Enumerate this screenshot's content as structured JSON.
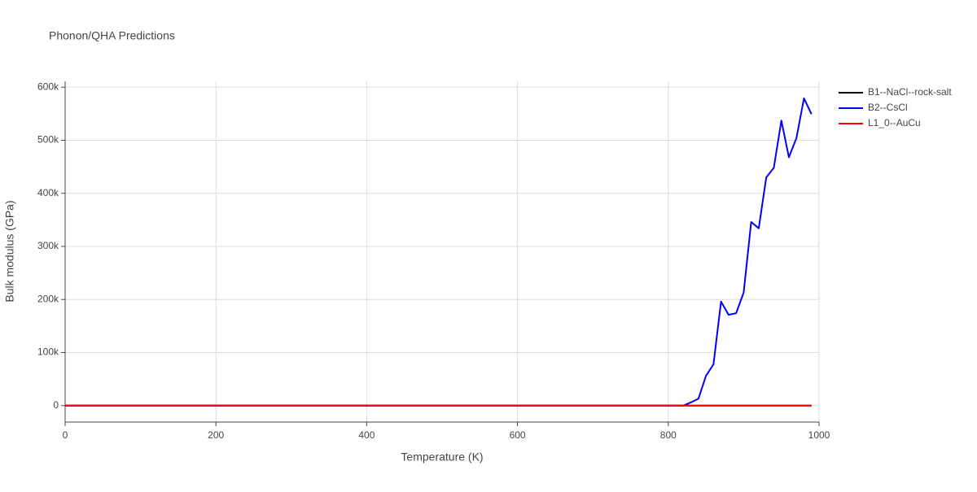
{
  "chart_data": {
    "type": "line",
    "title": "Phonon/QHA Predictions",
    "x_label": "Temperature (K)",
    "y_label": "Bulk modulus (GPa)",
    "x": [
      0,
      10,
      20,
      30,
      40,
      50,
      60,
      70,
      80,
      90,
      100,
      110,
      120,
      130,
      140,
      150,
      160,
      170,
      180,
      190,
      200,
      210,
      220,
      230,
      240,
      250,
      260,
      270,
      280,
      290,
      300,
      310,
      320,
      330,
      340,
      350,
      360,
      370,
      380,
      390,
      400,
      410,
      420,
      430,
      440,
      450,
      460,
      470,
      480,
      490,
      500,
      510,
      520,
      530,
      540,
      550,
      560,
      570,
      580,
      590,
      600,
      610,
      620,
      630,
      640,
      650,
      660,
      670,
      680,
      690,
      700,
      710,
      720,
      730,
      740,
      750,
      760,
      770,
      780,
      790,
      800,
      810,
      820,
      830,
      840,
      850,
      860,
      870,
      880,
      890,
      900,
      910,
      920,
      930,
      940,
      950,
      960,
      970,
      980,
      990
    ],
    "series": [
      {
        "name": "B1--NaCl--rock-salt",
        "color": "#000000",
        "values": [
          0,
          0,
          0,
          0,
          0,
          0,
          0,
          0,
          0,
          0,
          0,
          0,
          0,
          0,
          0,
          0,
          0,
          0,
          0,
          0,
          0,
          0,
          0,
          0,
          0,
          0,
          0,
          0,
          0,
          0,
          0,
          0,
          0,
          0,
          0,
          0,
          0,
          0,
          0,
          0,
          0,
          0,
          0,
          0,
          0,
          0,
          0,
          0,
          0,
          0,
          0,
          0,
          0,
          0,
          0,
          0,
          0,
          0,
          0,
          0,
          0,
          0,
          0,
          0,
          0,
          0,
          0,
          0,
          0,
          0,
          0,
          0,
          0,
          0,
          0,
          0,
          0,
          0,
          0,
          0,
          0,
          0,
          0,
          0,
          0,
          0,
          0,
          0,
          0,
          0,
          0,
          0,
          0,
          0,
          0,
          0,
          0,
          0,
          0,
          0
        ]
      },
      {
        "name": "B2--CsCl",
        "color": "#0000ff",
        "values": [
          0,
          0,
          0,
          0,
          0,
          0,
          0,
          0,
          0,
          0,
          0,
          0,
          0,
          0,
          0,
          0,
          0,
          0,
          0,
          0,
          0,
          0,
          0,
          0,
          0,
          0,
          0,
          0,
          0,
          0,
          0,
          0,
          0,
          0,
          0,
          0,
          0,
          0,
          0,
          0,
          0,
          0,
          0,
          0,
          0,
          0,
          0,
          0,
          0,
          0,
          0,
          0,
          0,
          0,
          0,
          0,
          0,
          0,
          0,
          0,
          0,
          0,
          0,
          0,
          0,
          0,
          0,
          0,
          0,
          0,
          0,
          0,
          0,
          0,
          0,
          0,
          0,
          0,
          0,
          0,
          0,
          0,
          0,
          6000,
          13000,
          56000,
          78000,
          196000,
          171000,
          174000,
          213000,
          346000,
          334000,
          430000,
          448000,
          537000,
          468000,
          504000,
          579000,
          549000
        ]
      },
      {
        "name": "L1_0--AuCu",
        "color": "#ff0000",
        "values": [
          0,
          0,
          0,
          0,
          0,
          0,
          0,
          0,
          0,
          0,
          0,
          0,
          0,
          0,
          0,
          0,
          0,
          0,
          0,
          0,
          0,
          0,
          0,
          0,
          0,
          0,
          0,
          0,
          0,
          0,
          0,
          0,
          0,
          0,
          0,
          0,
          0,
          0,
          0,
          0,
          0,
          0,
          0,
          0,
          0,
          0,
          0,
          0,
          0,
          0,
          0,
          0,
          0,
          0,
          0,
          0,
          0,
          0,
          0,
          0,
          0,
          0,
          0,
          0,
          0,
          0,
          0,
          0,
          0,
          0,
          0,
          0,
          0,
          0,
          0,
          0,
          0,
          0,
          0,
          0,
          0,
          0,
          0,
          0,
          0,
          0,
          0,
          0,
          0,
          0,
          0,
          0,
          0,
          0,
          0,
          0,
          0,
          0,
          0,
          0
        ]
      }
    ],
    "xlim": [
      0,
      1000
    ],
    "xticks": [
      0,
      200,
      400,
      600,
      800,
      1000
    ],
    "ylim": [
      -31000,
      611000
    ],
    "yticks": [
      0,
      {
        "value": 100000,
        "label": "100k"
      },
      {
        "value": 200000,
        "label": "200k"
      },
      {
        "value": 300000,
        "label": "300k"
      },
      {
        "value": 400000,
        "label": "400k"
      },
      {
        "value": 500000,
        "label": "500k"
      },
      {
        "value": 600000,
        "label": "600k"
      }
    ],
    "grid": true,
    "legend": "top-right"
  }
}
